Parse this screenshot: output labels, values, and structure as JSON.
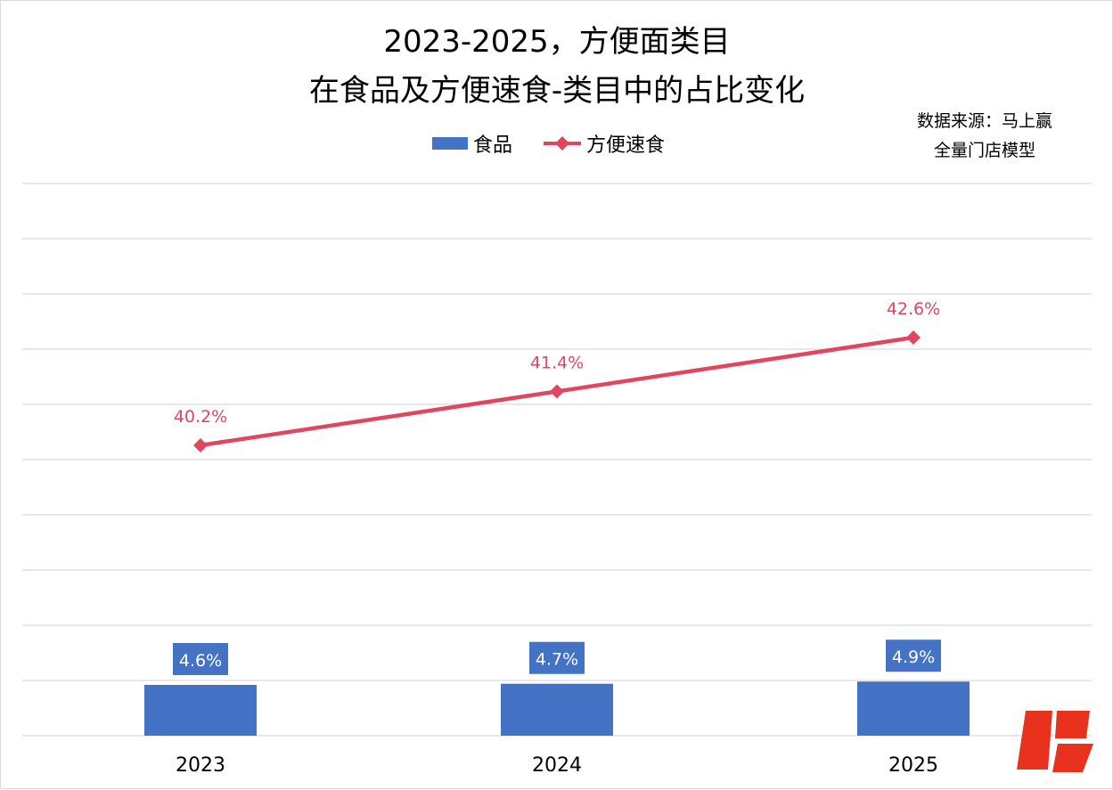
{
  "chart_data": {
    "type": "bar",
    "title_lines": [
      "2023-2025，方便面类目",
      "在食品及方便速食-类目中的占比变化"
    ],
    "source_lines": [
      "数据来源：马上赢",
      "全量门店模型"
    ],
    "categories": [
      "2023",
      "2024",
      "2025"
    ],
    "series": [
      {
        "name": "食品",
        "kind": "bar",
        "values": [
          4.6,
          4.7,
          4.9
        ],
        "labels": [
          "4.6%",
          "4.7%",
          "4.9%"
        ],
        "color": "#4472c4"
      },
      {
        "name": "方便速食",
        "kind": "line",
        "values": [
          40.2,
          41.4,
          42.6
        ],
        "labels": [
          "40.2%",
          "41.4%",
          "42.6%"
        ],
        "color": "#e0475f"
      }
    ],
    "grid": true,
    "legend_position": "top"
  },
  "watermark": {
    "glyph": "股",
    "color": "#e8321e"
  }
}
